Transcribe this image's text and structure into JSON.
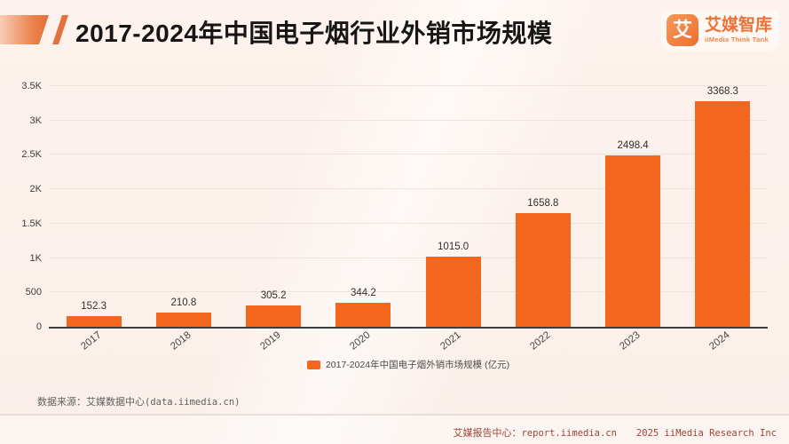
{
  "header": {
    "title": "2017-2024年中国电子烟行业外销市场规模",
    "logo": {
      "glyph": "艾",
      "brand": "艾媒智库",
      "tagline": "iiMedia Think Tank"
    }
  },
  "chart_data": {
    "type": "bar",
    "title": "2017-2024年中国电子烟行业外销市场规模",
    "categories": [
      "2017",
      "2018",
      "2019",
      "2020",
      "2021",
      "2022",
      "2023",
      "2024"
    ],
    "values": [
      152.3,
      210.8,
      305.2,
      344.2,
      1015.0,
      1658.8,
      2498.4,
      3368.3
    ],
    "value_labels": [
      "152.3",
      "210.8",
      "305.2",
      "344.2",
      "1015.0",
      "1658.8",
      "2498.4",
      "3368.3"
    ],
    "unit": "亿元",
    "legend": [
      "2017-2024年中国电子烟外销市场规模 (亿元)"
    ],
    "legend_position": "bottom",
    "xlabel": "",
    "ylabel": "",
    "ylim": [
      0,
      3500
    ],
    "yticks": [
      0,
      500,
      1000,
      1500,
      2000,
      2500,
      3000,
      3500
    ],
    "ytick_labels": [
      "0",
      "500",
      "1K",
      "1.5K",
      "2K",
      "2.5K",
      "3K",
      "3.5K"
    ],
    "grid": true,
    "bar_color": "#f4661e"
  },
  "footer": {
    "source_prefix": "数据来源：艾媒数据中心",
    "source_domain": "(data.iimedia.cn)",
    "report_label": "艾媒报告中心：",
    "report_domain": "report.iimedia.cn",
    "copyright": "2025 iiMedia Research Inc"
  },
  "colors": {
    "accent": "#f4661e",
    "background": "#fcf1ec",
    "axis": "#3d3d3d",
    "footer_text": "#a04434"
  }
}
